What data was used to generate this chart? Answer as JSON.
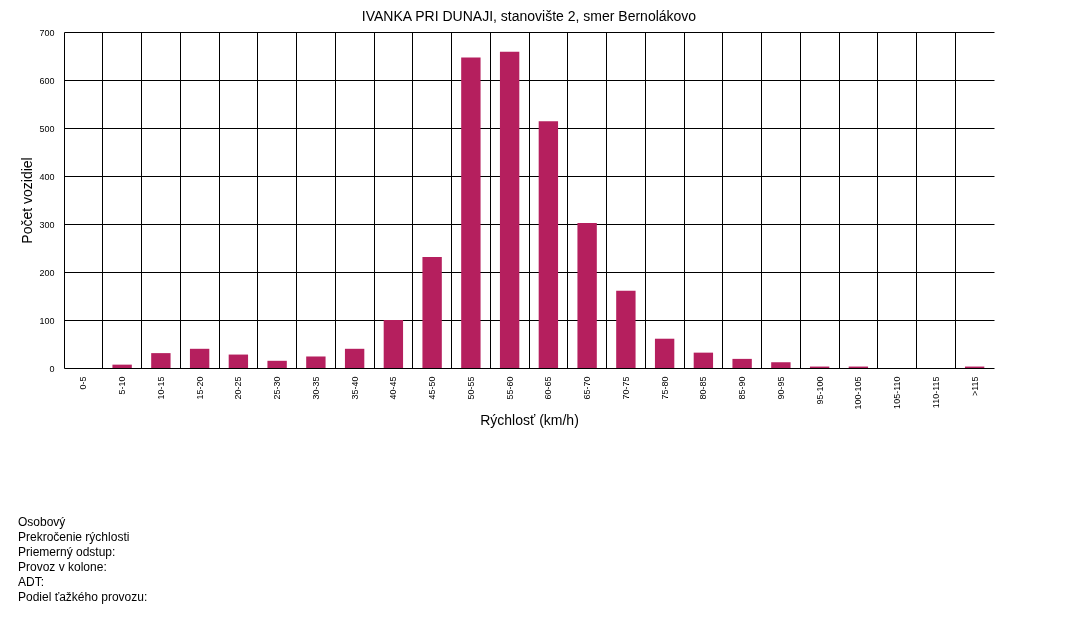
{
  "chart_data": {
    "type": "bar",
    "title": "IVANKA PRI DUNAJI, stanovište 2, smer Bernolákovo",
    "xlabel": "Rýchlosť (km/h)",
    "ylabel": "Počet vozidiel",
    "categories": [
      "0-5",
      "5-10",
      "10-15",
      "15-20",
      "20-25",
      "25-30",
      "30-35",
      "35-40",
      "40-45",
      "45-50",
      "50-55",
      "55-60",
      "60-65",
      "65-70",
      "70-75",
      "75-80",
      "80-85",
      "85-90",
      "90-95",
      "95-100",
      "100-105",
      "105-110",
      "110-115",
      ">115"
    ],
    "values": [
      0,
      7,
      31,
      40,
      28,
      15,
      24,
      40,
      100,
      231,
      647,
      659,
      514,
      302,
      161,
      61,
      32,
      19,
      12,
      3,
      3,
      0,
      0,
      3
    ],
    "color": "#b51f5e",
    "ylim": [
      0,
      700
    ],
    "yticks": [
      0,
      100,
      200,
      300,
      400,
      500,
      600,
      700
    ],
    "grid": true,
    "annotations": [
      "Osobový",
      "Prekročenie rýchlosti",
      "Priemerný odstup:",
      "Provoz v kolone:",
      "ADT:",
      "Podiel ťažkého provozu:"
    ]
  }
}
